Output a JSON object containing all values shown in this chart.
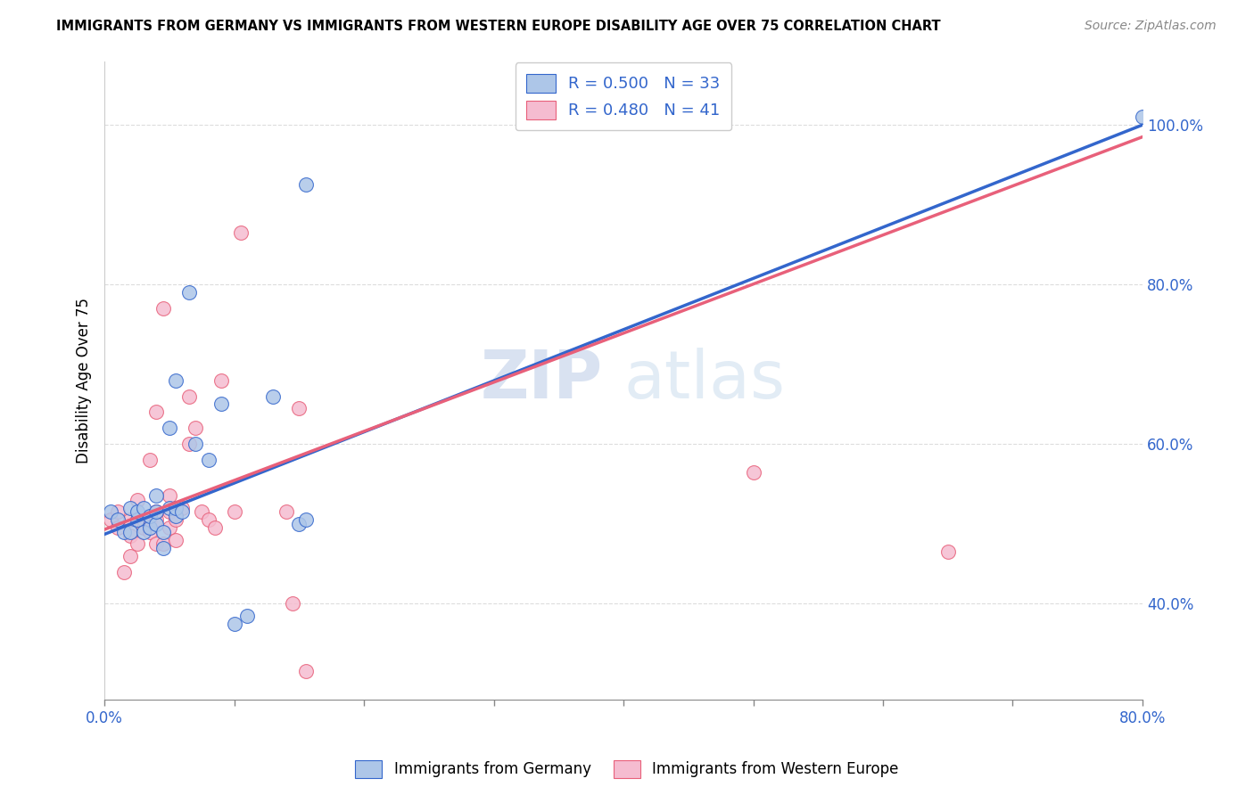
{
  "title": "IMMIGRANTS FROM GERMANY VS IMMIGRANTS FROM WESTERN EUROPE DISABILITY AGE OVER 75 CORRELATION CHART",
  "source": "Source: ZipAtlas.com",
  "ylabel": "Disability Age Over 75",
  "legend_label_1": "Immigrants from Germany",
  "legend_label_2": "Immigrants from Western Europe",
  "r1": 0.5,
  "n1": 33,
  "r2": 0.48,
  "n2": 41,
  "color1": "#adc6e8",
  "color2": "#f5bcd0",
  "line_color1": "#3366cc",
  "line_color2": "#e8607a",
  "watermark_zip": "ZIP",
  "watermark_atlas": "atlas",
  "xlim": [
    0.0,
    0.8
  ],
  "ylim": [
    0.28,
    1.08
  ],
  "x_ticks": [
    0.0,
    0.1,
    0.2,
    0.3,
    0.4,
    0.5,
    0.6,
    0.7,
    0.8
  ],
  "y_ticks_right": [
    0.4,
    0.6,
    0.8,
    1.0
  ],
  "line1_x0": 0.0,
  "line1_y0": 0.487,
  "line1_x1": 0.8,
  "line1_y1": 1.0,
  "line2_x0": 0.0,
  "line2_y0": 0.493,
  "line2_x1": 0.8,
  "line2_y1": 0.985,
  "scatter1_x": [
    0.005,
    0.01,
    0.015,
    0.02,
    0.02,
    0.025,
    0.025,
    0.03,
    0.03,
    0.035,
    0.035,
    0.04,
    0.04,
    0.04,
    0.045,
    0.045,
    0.05,
    0.05,
    0.055,
    0.055,
    0.055,
    0.06,
    0.065,
    0.07,
    0.08,
    0.09,
    0.1,
    0.11,
    0.13,
    0.15,
    0.155,
    0.155,
    0.8
  ],
  "scatter1_y": [
    0.515,
    0.505,
    0.49,
    0.49,
    0.52,
    0.505,
    0.515,
    0.49,
    0.52,
    0.495,
    0.51,
    0.5,
    0.515,
    0.535,
    0.47,
    0.49,
    0.52,
    0.62,
    0.51,
    0.52,
    0.68,
    0.515,
    0.79,
    0.6,
    0.58,
    0.65,
    0.375,
    0.385,
    0.66,
    0.5,
    0.505,
    0.925,
    1.01
  ],
  "scatter2_x": [
    0.005,
    0.01,
    0.01,
    0.015,
    0.02,
    0.02,
    0.02,
    0.025,
    0.025,
    0.03,
    0.03,
    0.035,
    0.035,
    0.035,
    0.04,
    0.04,
    0.04,
    0.04,
    0.045,
    0.045,
    0.05,
    0.05,
    0.05,
    0.055,
    0.055,
    0.06,
    0.065,
    0.065,
    0.07,
    0.075,
    0.08,
    0.085,
    0.09,
    0.1,
    0.105,
    0.14,
    0.145,
    0.15,
    0.155,
    0.5,
    0.65
  ],
  "scatter2_y": [
    0.505,
    0.495,
    0.515,
    0.44,
    0.46,
    0.485,
    0.505,
    0.475,
    0.53,
    0.495,
    0.505,
    0.49,
    0.505,
    0.58,
    0.475,
    0.505,
    0.515,
    0.64,
    0.77,
    0.475,
    0.495,
    0.515,
    0.535,
    0.48,
    0.505,
    0.52,
    0.6,
    0.66,
    0.62,
    0.515,
    0.505,
    0.495,
    0.68,
    0.515,
    0.865,
    0.515,
    0.4,
    0.645,
    0.315,
    0.565,
    0.465
  ],
  "marker_size": 130
}
